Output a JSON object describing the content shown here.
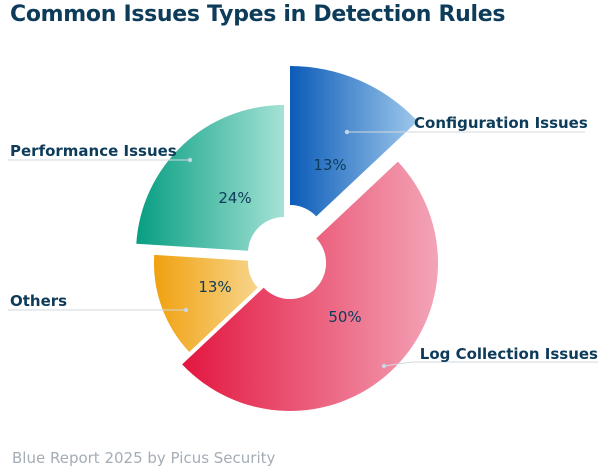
{
  "title": "Common Issues Types in Detection Rules",
  "footer": "Blue Report 2025 by Picus Security",
  "chart_data": {
    "type": "pie",
    "title": "Common Issues Types in Detection Rules",
    "slices": [
      {
        "label": "Configuration Issues",
        "value": 13,
        "display": "13%",
        "color_from": "#0b5bb8",
        "color_to": "#9ec8ec"
      },
      {
        "label": "Log Collection Issues",
        "value": 50,
        "display": "50%",
        "color_from": "#e3163f",
        "color_to": "#f3a4b7"
      },
      {
        "label": "Others",
        "value": 13,
        "display": "13%",
        "color_from": "#f0a10f",
        "color_to": "#f7d58b"
      },
      {
        "label": "Performance Issues",
        "value": 24,
        "display": "24%",
        "color_from": "#079e82",
        "color_to": "#a5e2d5"
      }
    ],
    "legend": "callout labels around the chart"
  }
}
